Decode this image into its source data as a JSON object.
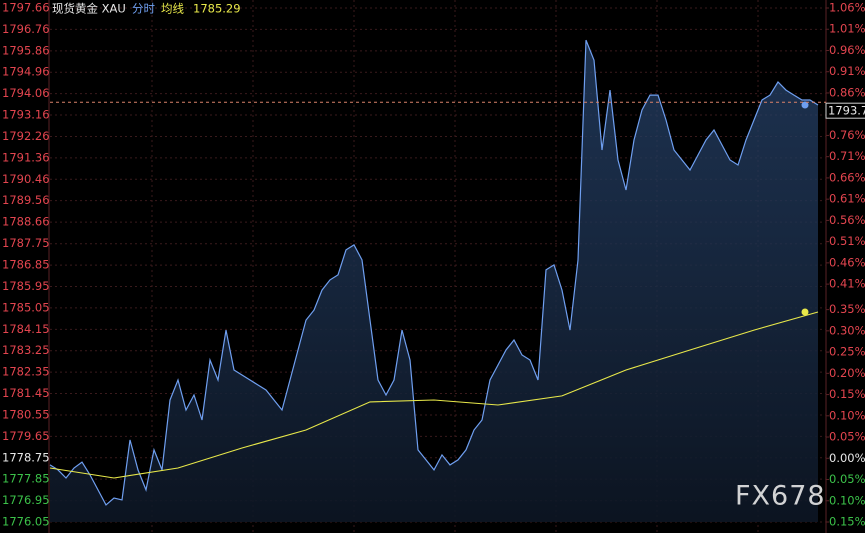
{
  "chart_data": {
    "type": "line",
    "title": "现货黄金 XAU",
    "watermark": "FX678",
    "series": [
      {
        "name": "分时",
        "color": "#6f9ff0",
        "values": [
          1778.45,
          1778.24,
          1777.9,
          1778.32,
          1778.57,
          1778.03,
          1777.4,
          1776.77,
          1777.06,
          1776.98,
          1779.5,
          1778.24,
          1777.4,
          1779.08,
          1778.24,
          1781.18,
          1782.02,
          1780.76,
          1781.39,
          1780.34,
          1782.86,
          1782.02,
          1784.12,
          1782.44,
          1782.23,
          1782.02,
          1781.81,
          1781.6,
          1781.18,
          1780.76,
          1782.02,
          1783.28,
          1784.54,
          1784.96,
          1785.8,
          1786.23,
          1786.44,
          1787.49,
          1787.7,
          1787.07,
          1784.54,
          1782.02,
          1781.39,
          1782.02,
          1784.12,
          1782.86,
          1779.08,
          1778.66,
          1778.24,
          1778.87,
          1778.45,
          1778.66,
          1779.08,
          1779.92,
          1780.34,
          1782.02,
          1782.65,
          1783.28,
          1783.7,
          1783.07,
          1782.86,
          1782.02,
          1786.65,
          1786.86,
          1785.8,
          1784.12,
          1787.07,
          1796.31,
          1795.47,
          1791.69,
          1794.21,
          1791.27,
          1790.01,
          1792.11,
          1793.37,
          1794.0,
          1794.0,
          1792.95,
          1791.69,
          1791.27,
          1790.85,
          1791.48,
          1792.11,
          1792.53,
          1791.9,
          1791.27,
          1791.06,
          1792.11,
          1792.95,
          1793.79,
          1794.0,
          1794.55,
          1794.21,
          1794.0,
          1793.79,
          1793.79,
          1793.58
        ]
      },
      {
        "name": "均线",
        "color": "#e8e84a",
        "current": 1785.29,
        "values": [
          1778.32,
          1777.9,
          1778.32,
          1779.16,
          1779.92,
          1781.1,
          1781.18,
          1780.97,
          1781.35,
          1782.44,
          1783.28,
          1784.12,
          1784.88
        ]
      }
    ],
    "last_price": 1793.7,
    "ylim": [
      1776.05,
      1797.66
    ],
    "yticks": [
      1797.66,
      1796.76,
      1795.86,
      1794.96,
      1794.06,
      1793.16,
      1792.26,
      1791.36,
      1790.46,
      1789.56,
      1788.66,
      1787.75,
      1786.85,
      1785.95,
      1785.05,
      1784.15,
      1783.25,
      1782.35,
      1781.45,
      1780.55,
      1779.65,
      1778.75,
      1777.85,
      1776.95,
      1776.05
    ],
    "y2lim": [
      -0.15,
      1.06
    ],
    "y2ticks": [
      {
        "value": 1.06,
        "label": "1.06%"
      },
      {
        "value": 1.01,
        "label": "1.01%"
      },
      {
        "value": 0.96,
        "label": "0.96%"
      },
      {
        "value": 0.91,
        "label": "0.91%"
      },
      {
        "value": 0.86,
        "label": "0.86%"
      },
      {
        "value": 0.76,
        "label": "0.76%"
      },
      {
        "value": 0.71,
        "label": "0.71%"
      },
      {
        "value": 0.66,
        "label": "0.66%"
      },
      {
        "value": 0.61,
        "label": "0.61%"
      },
      {
        "value": 0.56,
        "label": "0.56%"
      },
      {
        "value": 0.51,
        "label": "0.51%"
      },
      {
        "value": 0.46,
        "label": "0.46%"
      },
      {
        "value": 0.41,
        "label": "0.41%"
      },
      {
        "value": 0.35,
        "label": "0.35%"
      },
      {
        "value": 0.3,
        "label": "0.30%"
      },
      {
        "value": 0.25,
        "label": "0.25%"
      },
      {
        "value": 0.2,
        "label": "0.20%"
      },
      {
        "value": 0.15,
        "label": "0.15%"
      },
      {
        "value": 0.1,
        "label": "0.10%"
      },
      {
        "value": 0.05,
        "label": "0.05%"
      },
      {
        "value": 0,
        "label": "0.00%"
      },
      {
        "value": -0.05,
        "label": "0.05%"
      },
      {
        "value": -0.1,
        "label": "0.10%"
      },
      {
        "value": -0.15,
        "label": "0.15%"
      }
    ],
    "grid": true
  }
}
